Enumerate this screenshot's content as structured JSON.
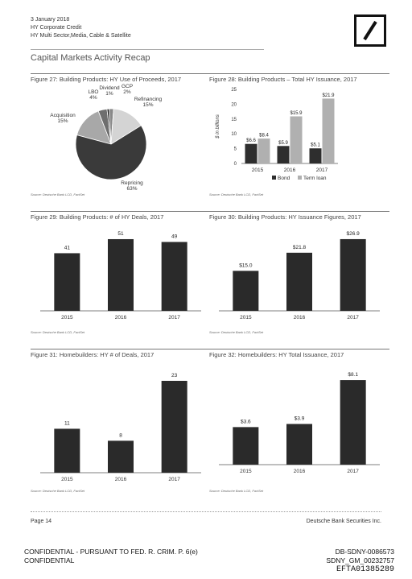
{
  "header": {
    "date": "3 January 2018",
    "line2": "HY Corporate Credit",
    "line3": "HY Multi Sector,Media, Cable & Satellite"
  },
  "section_title": "Capital Markets Activity Recap",
  "panels": [
    {
      "title": "Figure 27: Building Products: HY Use of Proceeds, 2017",
      "source": "Source: Deutsche Bank LCD, FactSet"
    },
    {
      "title": "Figure 28: Building Products – Total HY Issuance, 2017",
      "source": "Source: Deutsche Bank LCD, FactSet"
    },
    {
      "title": "Figure 29: Building Products: # of HY Deals, 2017",
      "source": "Source: Deutsche Bank LCD, FactSet"
    },
    {
      "title": "Figure 30: Building Products: HY Issuance Figures, 2017",
      "source": "Source: Deutsche Bank LCD, FactSet"
    },
    {
      "title": "Figure 31: Homebuilders: HY # of Deals, 2017",
      "source": "Source: Deutsche Bank LCD, FactSet"
    },
    {
      "title": "Figure 32: Homebuilders: HY Total Issuance, 2017",
      "source": "Source: Deutsche Bank LCD, FactSet"
    }
  ],
  "footer": {
    "page": "Page 14",
    "company": "Deutsche Bank Securities Inc.",
    "conf1": "CONFIDENTIAL - PURSUANT TO FED. R. CRIM. P. 6(e)",
    "conf2": "CONFIDENTIAL",
    "id1": "DB-SDNY-0086573",
    "id2": "SDNY_GM_00232757",
    "id3": "EFTA01385289"
  },
  "chart_data": [
    {
      "type": "pie",
      "title": "Figure 27: Building Products: HY Use of Proceeds, 2017",
      "slices": [
        {
          "label": "Repricing",
          "pct_label": "63%",
          "value": 63,
          "color": "#3a3a3a"
        },
        {
          "label": "Acquisition",
          "pct_label": "15%",
          "value": 15,
          "color": "#a8a8a8"
        },
        {
          "label": "LBO",
          "pct_label": "4%",
          "value": 4,
          "color": "#6e6e6e"
        },
        {
          "label": "Dividend",
          "pct_label": "1%",
          "value": 1,
          "color": "#222222"
        },
        {
          "label": "GCP",
          "pct_label": "2%",
          "value": 2,
          "color": "#888888"
        },
        {
          "label": "Refinancing",
          "pct_label": "15%",
          "value": 15,
          "color": "#d4d4d4"
        }
      ]
    },
    {
      "type": "bar",
      "title": "Figure 28: Building Products – Total HY Issuance, 2017",
      "categories": [
        "2015",
        "2016",
        "2017"
      ],
      "series": [
        {
          "name": "Bond",
          "values": [
            6.6,
            5.9,
            5.1
          ],
          "labels": [
            "$6.6",
            "$5.9",
            "$5.1"
          ],
          "color": "#2e2e2e"
        },
        {
          "name": "Term loan",
          "values": [
            8.4,
            15.9,
            21.9
          ],
          "labels": [
            "$8.4",
            "$15.9",
            "$21.9"
          ],
          "color": "#b0b0b0"
        }
      ],
      "ylabel": "$ in billions",
      "ylim": [
        0,
        25
      ],
      "yticks": [
        "0",
        "5",
        "10",
        "15",
        "20",
        "25"
      ],
      "legend": "bottom"
    },
    {
      "type": "bar",
      "title": "Figure 29: Building Products: # of HY Deals, 2017",
      "categories": [
        "2015",
        "2016",
        "2017"
      ],
      "values": [
        41,
        51,
        49
      ],
      "labels": [
        "41",
        "51",
        "49"
      ],
      "ylim": [
        0,
        55
      ]
    },
    {
      "type": "bar",
      "title": "Figure 30: Building Products: HY Issuance Figures, 2017",
      "categories": [
        "2015",
        "2016",
        "2017"
      ],
      "values": [
        15.0,
        21.8,
        26.9
      ],
      "labels": [
        "$15.0",
        "$21.8",
        "$26.9"
      ],
      "ylim": [
        0,
        29
      ]
    },
    {
      "type": "bar",
      "title": "Figure 31: Homebuilders: HY # of Deals, 2017",
      "categories": [
        "2015",
        "2016",
        "2017"
      ],
      "values": [
        11,
        8,
        23
      ],
      "labels": [
        "11",
        "8",
        "23"
      ],
      "ylim": [
        0,
        25
      ]
    },
    {
      "type": "bar",
      "title": "Figure 32: Homebuilders: HY Total Issuance, 2017",
      "categories": [
        "2015",
        "2016",
        "2017"
      ],
      "values": [
        3.6,
        3.9,
        8.1
      ],
      "labels": [
        "$3.6",
        "$3.9",
        "$8.1"
      ],
      "ylim": [
        0,
        8.8
      ]
    }
  ]
}
